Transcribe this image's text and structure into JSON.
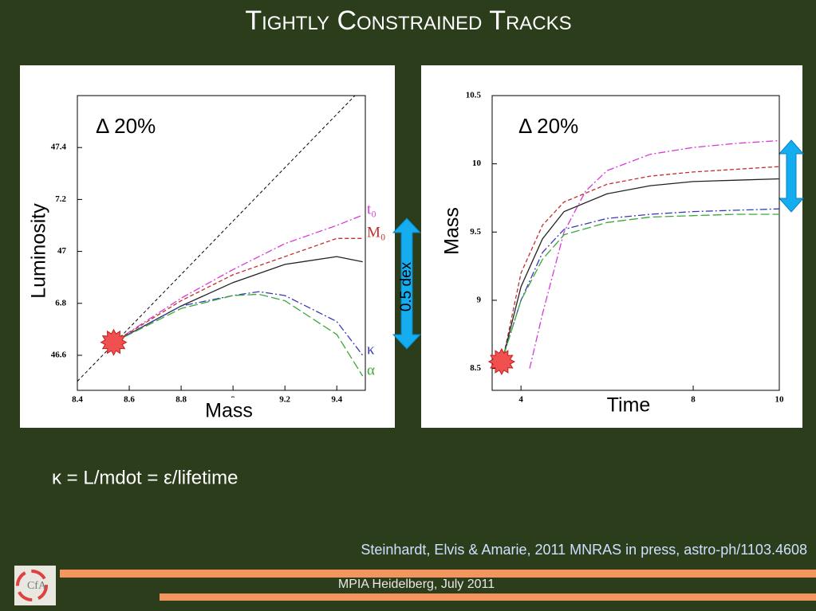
{
  "title": "Tightly Constrained Tracks",
  "chart_data": [
    {
      "type": "line",
      "annotation": "Δ 20%",
      "arrow_label": "0.5 dex",
      "x_label": "Mass",
      "y_label": "Luminosity",
      "xlim": [
        8.4,
        9.51
      ],
      "ylim": [
        46.465,
        47.6
      ],
      "xticks": [
        8.4,
        8.6,
        8.8,
        9,
        9.2,
        9.4
      ],
      "yticks": [
        46.6,
        {
          "value": 46.8,
          "label": "6.8"
        },
        47,
        {
          "value": 47.2,
          "label": "7.2"
        },
        47.4
      ],
      "highlight_point": [
        8.54,
        46.65
      ],
      "series": [
        {
          "color": "#000000",
          "dash": "dashed-thin",
          "x": [
            8.4,
            9.47
          ],
          "values": [
            46.5,
            47.6
          ]
        },
        {
          "name": "t₀",
          "color": "#d63ad6",
          "dash": "dash-dot",
          "x": [
            8.54,
            8.8,
            9.0,
            9.2,
            9.4,
            9.5
          ],
          "values": [
            46.65,
            46.82,
            46.93,
            47.03,
            47.1,
            47.14
          ]
        },
        {
          "name": "M₀",
          "color": "#c0302a",
          "dash": "dashed",
          "x": [
            8.54,
            8.8,
            9.0,
            9.2,
            9.4,
            9.5
          ],
          "values": [
            46.65,
            46.81,
            46.91,
            46.98,
            47.05,
            47.05
          ]
        },
        {
          "color": "#222222",
          "dash": "solid",
          "x": [
            8.54,
            8.8,
            9.0,
            9.2,
            9.4,
            9.5
          ],
          "values": [
            46.65,
            46.79,
            46.88,
            46.95,
            46.98,
            46.96
          ]
        },
        {
          "name": "κ",
          "color": "#3a3ab8",
          "dash": "dash-dot",
          "x": [
            8.54,
            8.8,
            9.0,
            9.1,
            9.2,
            9.4,
            9.5
          ],
          "values": [
            46.65,
            46.79,
            46.83,
            46.845,
            46.83,
            46.73,
            46.6
          ]
        },
        {
          "name": "α",
          "color": "#3aa83a",
          "dash": "long-dash",
          "x": [
            8.54,
            8.8,
            9.0,
            9.1,
            9.2,
            9.4,
            9.5
          ],
          "values": [
            46.65,
            46.78,
            46.83,
            46.835,
            46.81,
            46.68,
            46.52
          ]
        }
      ]
    },
    {
      "type": "line",
      "annotation": "Δ 20%",
      "x_label": "Time",
      "y_label": "Mass",
      "xlim": [
        3.33,
        10
      ],
      "ylim": [
        8.34,
        10.5
      ],
      "xticks": [
        4,
        8,
        10
      ],
      "yticks": [
        8.5,
        9,
        9.5,
        10,
        10.5
      ],
      "highlight_point": [
        3.55,
        8.55
      ],
      "series": [
        {
          "color": "#d63ad6",
          "dash": "dash-dot",
          "x": [
            4.2,
            4.5,
            5,
            5.5,
            6,
            7,
            8,
            9,
            10
          ],
          "values": [
            8.5,
            8.9,
            9.5,
            9.8,
            9.95,
            10.07,
            10.12,
            10.15,
            10.17
          ]
        },
        {
          "color": "#c0302a",
          "dash": "dashed",
          "x": [
            3.6,
            4,
            4.5,
            5,
            6,
            7,
            8,
            9,
            10
          ],
          "values": [
            8.6,
            9.2,
            9.55,
            9.72,
            9.85,
            9.91,
            9.94,
            9.96,
            9.98
          ]
        },
        {
          "color": "#222222",
          "dash": "solid",
          "x": [
            3.6,
            4,
            4.5,
            5,
            6,
            7,
            8,
            9,
            10
          ],
          "values": [
            8.6,
            9.1,
            9.45,
            9.65,
            9.78,
            9.84,
            9.87,
            9.88,
            9.89
          ]
        },
        {
          "color": "#3a3ab8",
          "dash": "dash-dot",
          "x": [
            3.6,
            4,
            4.5,
            5,
            6,
            7,
            8,
            9,
            10
          ],
          "values": [
            8.6,
            9.0,
            9.35,
            9.52,
            9.6,
            9.63,
            9.65,
            9.66,
            9.67
          ]
        },
        {
          "color": "#3aa83a",
          "dash": "long-dash",
          "x": [
            3.6,
            4,
            4.5,
            5,
            6,
            7,
            8,
            9,
            10
          ],
          "values": [
            8.6,
            9.0,
            9.3,
            9.48,
            9.57,
            9.61,
            9.62,
            9.63,
            9.63
          ]
        }
      ]
    }
  ],
  "formula": "κ = L/mdot = ε/lifetime",
  "citation": "Steinhardt, Elvis & Amarie, 2011 MNRAS in press, astro-ph/1103.4608",
  "footer": "MPIA Heidelberg, July 2011",
  "logo": "CfA"
}
